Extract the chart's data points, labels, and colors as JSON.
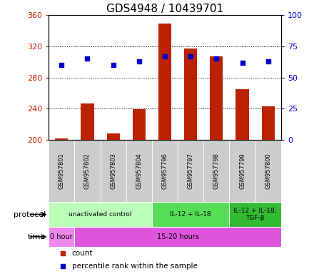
{
  "title": "GDS4948 / 10439701",
  "samples": [
    "GSM957801",
    "GSM957802",
    "GSM957803",
    "GSM957804",
    "GSM957796",
    "GSM957797",
    "GSM957798",
    "GSM957799",
    "GSM957800"
  ],
  "count_values": [
    202,
    247,
    208,
    239,
    349,
    317,
    307,
    265,
    243
  ],
  "percentile_values": [
    60,
    65,
    60,
    63,
    67,
    67,
    65,
    62,
    63
  ],
  "ylim_left": [
    200,
    360
  ],
  "ylim_right": [
    0,
    100
  ],
  "yticks_left": [
    200,
    240,
    280,
    320,
    360
  ],
  "yticks_right": [
    0,
    25,
    50,
    75,
    100
  ],
  "bar_color": "#bb2200",
  "dot_color": "#0000cc",
  "protocol_groups": [
    {
      "label": "unactivated control",
      "start": 0,
      "end": 4,
      "color": "#bbffbb"
    },
    {
      "label": "IL-12 + IL-18",
      "start": 4,
      "end": 7,
      "color": "#55dd55"
    },
    {
      "label": "IL-12 + IL-18,\nTGF-β",
      "start": 7,
      "end": 9,
      "color": "#33bb33"
    }
  ],
  "time_groups": [
    {
      "label": "0 hour",
      "start": 0,
      "end": 1,
      "color": "#ee88ee"
    },
    {
      "label": "15-20 hours",
      "start": 1,
      "end": 9,
      "color": "#dd55dd"
    }
  ],
  "protocol_label": "protocol",
  "time_label": "time",
  "legend_count": "count",
  "legend_percentile": "percentile rank within the sample",
  "left_axis_color": "#cc2200",
  "right_axis_color": "#0000cc",
  "sample_box_color": "#cccccc",
  "title_fontsize": 11,
  "tick_fontsize": 8,
  "bar_width": 0.5
}
